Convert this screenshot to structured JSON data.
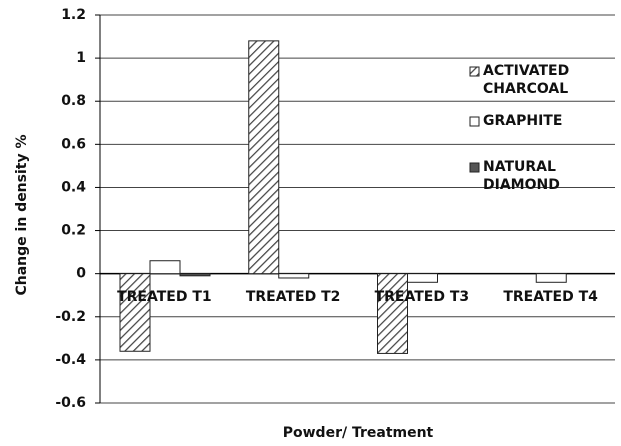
{
  "chart_data": {
    "type": "bar",
    "x_label": "Powder/ Treatment",
    "y_label": "Change in density %",
    "categories": [
      "TREATED T1",
      "TREATED T2",
      "TREATED T3",
      "TREATED T4"
    ],
    "series": [
      {
        "name": "ACTIVATED CHARCOAL",
        "color": "#444444",
        "pattern": "diagonal",
        "values": [
          -0.36,
          1.08,
          -0.37,
          0
        ]
      },
      {
        "name": "GRAPHITE",
        "color": "#ffffff",
        "values": [
          0.06,
          -0.02,
          -0.04,
          -0.04
        ]
      },
      {
        "name": "NATURAL DIAMOND",
        "color": "#555555",
        "values": [
          -0.01,
          0,
          0,
          0
        ]
      }
    ],
    "ylim": [
      -0.6,
      1.2
    ],
    "yticks": [
      -0.6,
      -0.4,
      -0.2,
      0,
      0.2,
      0.4,
      0.6,
      0.8,
      1,
      1.2
    ],
    "grid": true,
    "legend": "right"
  }
}
